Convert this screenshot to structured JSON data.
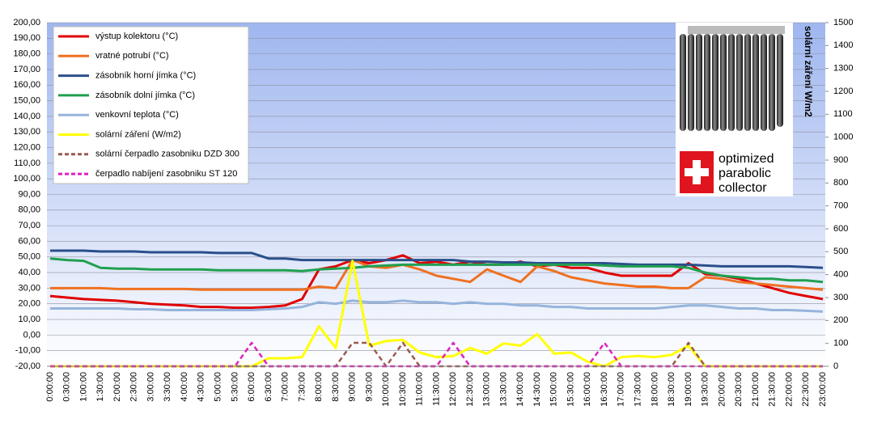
{
  "chart_data": {
    "type": "line",
    "y2label": "solární záření W/m2",
    "categories": [
      "0:00:00",
      "0:30:00",
      "1:00:00",
      "1:30:00",
      "2:00:00",
      "2:30:00",
      "3:00:00",
      "3:30:00",
      "4:00:00",
      "4:30:00",
      "5:00:00",
      "5:30:00",
      "6:00:00",
      "6:30:00",
      "7:00:00",
      "7:30:00",
      "8:00:00",
      "8:30:00",
      "9:00:00",
      "9:30:00",
      "10:00:00",
      "10:30:00",
      "11:00:00",
      "11:30:00",
      "12:00:00",
      "12:30:00",
      "13:00:00",
      "13:30:00",
      "14:00:00",
      "14:30:00",
      "15:00:00",
      "15:30:00",
      "16:00:00",
      "16:30:00",
      "17:00:00",
      "17:30:00",
      "18:00:00",
      "18:30:00",
      "19:00:00",
      "19:30:00",
      "20:00:00",
      "20:30:00",
      "21:00:00",
      "21:30:00",
      "22:00:00",
      "22:30:00",
      "23:00:00"
    ],
    "ylim": [
      -20,
      200
    ],
    "yticks": [
      {
        "value": -20,
        "label": "-20,00"
      },
      {
        "value": -10,
        "label": "-10,00"
      },
      {
        "value": 0,
        "label": "0,00"
      },
      {
        "value": 10,
        "label": "10,00"
      },
      {
        "value": 20,
        "label": "20,00"
      },
      {
        "value": 30,
        "label": "30,00"
      },
      {
        "value": 40,
        "label": "40,00"
      },
      {
        "value": 50,
        "label": "50,00"
      },
      {
        "value": 60,
        "label": "60,00"
      },
      {
        "value": 70,
        "label": "70,00"
      },
      {
        "value": 80,
        "label": "80,00"
      },
      {
        "value": 90,
        "label": "90,00"
      },
      {
        "value": 100,
        "label": "100,00"
      },
      {
        "value": 110,
        "label": "110,00"
      },
      {
        "value": 120,
        "label": "120,00"
      },
      {
        "value": 130,
        "label": "130,00"
      },
      {
        "value": 140,
        "label": "140,00"
      },
      {
        "value": 150,
        "label": "150,00"
      },
      {
        "value": 160,
        "label": "160,00"
      },
      {
        "value": 170,
        "label": "170,00"
      },
      {
        "value": 180,
        "label": "180,00"
      },
      {
        "value": 190,
        "label": "190,00"
      },
      {
        "value": 200,
        "label": "200,00"
      }
    ],
    "y2lim": [
      0,
      1500
    ],
    "y2ticks": [
      0,
      100,
      200,
      300,
      400,
      500,
      600,
      700,
      800,
      900,
      1000,
      1100,
      1200,
      1300,
      1400,
      1500
    ],
    "grid": true,
    "legend": "upper-left",
    "series": [
      {
        "name": "výstup kolektoru (°C)",
        "color": "#e00000",
        "values": [
          25,
          24,
          23,
          22.5,
          22,
          21,
          20,
          19.5,
          19,
          18,
          18,
          17.5,
          17.5,
          18,
          19,
          23,
          42,
          44,
          48,
          46,
          48,
          51,
          46,
          47,
          45,
          47,
          45,
          45,
          47,
          44,
          45,
          43,
          43,
          40,
          38,
          38,
          38,
          38,
          46,
          39,
          38,
          36,
          33,
          30,
          27,
          25,
          23
        ]
      },
      {
        "name": "vratné potrubí (°C)",
        "color": "#f07020",
        "values": [
          30,
          30,
          30,
          30,
          29.5,
          29.5,
          29.5,
          29.5,
          29.5,
          29,
          29,
          29,
          29,
          29,
          29,
          29,
          31,
          30,
          48,
          44,
          43,
          45,
          42,
          38,
          36,
          34,
          42,
          38,
          34,
          44,
          41,
          37,
          35,
          33,
          32,
          31,
          31,
          30,
          30,
          37,
          36,
          34,
          33,
          32,
          31,
          30,
          29
        ]
      },
      {
        "name": "zásobník horní jímka (°C)",
        "color": "#2a4f8a",
        "values": [
          54,
          54,
          54,
          53.5,
          53.5,
          53.5,
          53,
          53,
          53,
          53,
          52.5,
          52.5,
          52.5,
          49,
          49,
          48,
          48,
          48,
          48,
          48,
          48,
          48,
          48,
          48,
          48,
          47,
          47,
          46.5,
          46.5,
          46,
          46,
          46,
          46,
          46,
          45.5,
          45,
          45,
          45,
          45,
          44.5,
          44,
          44,
          44,
          44,
          44,
          43.5,
          43
        ]
      },
      {
        "name": "zásobník dolní jímka (°C)",
        "color": "#20a050",
        "values": [
          49,
          48,
          47.5,
          43,
          42.5,
          42.5,
          42,
          42,
          42,
          42,
          41.5,
          41.5,
          41.5,
          41.5,
          41.5,
          41,
          42,
          42.5,
          43,
          44,
          44.5,
          45,
          45,
          45,
          45,
          45,
          45,
          45,
          45,
          45,
          45,
          45,
          45,
          44.5,
          44,
          44,
          44,
          44,
          43,
          40,
          38,
          37,
          36,
          36,
          35,
          35,
          34
        ]
      },
      {
        "name": "venkovní teplota (°C)",
        "color": "#96b4dc",
        "values": [
          17,
          17,
          17,
          17,
          17,
          16.5,
          16.5,
          16,
          16,
          16,
          16,
          16,
          16,
          16.5,
          17,
          18,
          21,
          20,
          22,
          21,
          21,
          22,
          21,
          21,
          20,
          21,
          20,
          20,
          19,
          19,
          18,
          18,
          17,
          17,
          17,
          17,
          17,
          18,
          19,
          19,
          18,
          17,
          17,
          16,
          16,
          15.5,
          15
        ]
      },
      {
        "name": "solární záření (W/m2)",
        "color": "#ffff00",
        "axis": "y2",
        "values": [
          0,
          0,
          0,
          0,
          0,
          0,
          0,
          0,
          0,
          0,
          0,
          0,
          0,
          35,
          35,
          40,
          175,
          80,
          460,
          90,
          110,
          115,
          60,
          40,
          45,
          80,
          55,
          100,
          90,
          140,
          55,
          60,
          20,
          0,
          40,
          45,
          40,
          50,
          90,
          0,
          0,
          0,
          0,
          0,
          0,
          0,
          0
        ]
      },
      {
        "name": "solární čerpadlo zasobniku  DZD 300",
        "color": "#9a5a50",
        "line_style": "dashed",
        "values": [
          -20,
          -20,
          -20,
          -20,
          -20,
          -20,
          -20,
          -20,
          -20,
          -20,
          -20,
          -20,
          -20,
          -20,
          -20,
          -20,
          -20,
          -20,
          -5,
          -5,
          -20,
          -5,
          -20,
          -20,
          -20,
          -20,
          -20,
          -20,
          -20,
          -20,
          -20,
          -20,
          -20,
          -20,
          -20,
          -20,
          -20,
          -20,
          -5,
          -20,
          -20,
          -20,
          -20,
          -20,
          -20,
          -20,
          -20
        ]
      },
      {
        "name": "čerpadlo nabíjení  zasobniku ST 120",
        "color": "#e020c0",
        "line_style": "dashed",
        "values": [
          -20,
          -20,
          -20,
          -20,
          -20,
          -20,
          -20,
          -20,
          -20,
          -20,
          -20,
          -20,
          -5,
          -20,
          -20,
          -20,
          -20,
          -20,
          -20,
          -20,
          -20,
          -20,
          -20,
          -20,
          -5,
          -20,
          -20,
          -20,
          -20,
          -20,
          -20,
          -20,
          -20,
          -5,
          -20,
          -20,
          -20,
          -20,
          -20,
          -20,
          -20,
          -20,
          -20,
          -20,
          -20,
          -20,
          -20
        ]
      }
    ]
  },
  "logo": {
    "lines": [
      "optimized",
      "parabolic",
      "collector"
    ]
  }
}
